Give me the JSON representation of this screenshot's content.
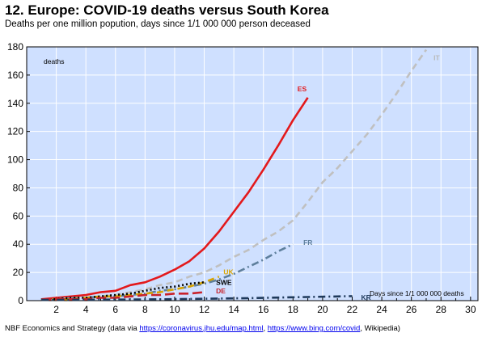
{
  "title": "12. Europe: COVID-19 deaths versus South Korea",
  "subtitle": "Deaths per one million popution, days since 1/1 000 000 person deceased",
  "footer": {
    "prefix": "NBF Economics and Strategy (data via ",
    "link1": "https://coronavirus.jhu.edu/map.html",
    "sep": ", ",
    "link2": "https://www.bing.com/covid",
    "suffix": ", Wikipedia)"
  },
  "chart_data": {
    "type": "line",
    "ylabel_inner": "deaths",
    "xlabel_inner": "Days since 1/1 000 000 deaths",
    "xlim": [
      0,
      30.5
    ],
    "ylim": [
      0,
      180
    ],
    "xticks": [
      2,
      4,
      6,
      8,
      10,
      12,
      14,
      16,
      18,
      20,
      22,
      24,
      26,
      28,
      30
    ],
    "yticks": [
      0,
      20,
      40,
      60,
      80,
      100,
      120,
      140,
      160,
      180
    ],
    "background": "#cfe0ff",
    "series": [
      {
        "name": "ES",
        "color": "#e3191c",
        "dash": "solid",
        "x": [
          1,
          2,
          3,
          4,
          5,
          6,
          7,
          8,
          9,
          10,
          11,
          12,
          13,
          14,
          15,
          16,
          17,
          18,
          19
        ],
        "y": [
          1,
          2,
          3,
          4,
          6,
          7,
          11,
          13,
          17,
          22,
          28,
          37,
          49,
          63,
          77,
          93,
          110,
          128,
          144
        ]
      },
      {
        "name": "IT",
        "color": "#c0c0c0",
        "dash": "dash",
        "x": [
          1,
          2,
          3,
          4,
          5,
          6,
          7,
          8,
          9,
          10,
          11,
          12,
          13,
          14,
          15,
          16,
          17,
          18,
          19,
          20,
          21,
          22,
          23,
          24,
          25,
          26,
          27
        ],
        "y": [
          1,
          1,
          2,
          2,
          3,
          4,
          6,
          8,
          11,
          13,
          17,
          20,
          25,
          31,
          36,
          43,
          49,
          57,
          70,
          84,
          94,
          106,
          118,
          132,
          147,
          163,
          178
        ]
      },
      {
        "name": "FR",
        "color": "#5e7f9c",
        "dash": "dashdot",
        "x": [
          1,
          2,
          3,
          4,
          5,
          6,
          7,
          8,
          9,
          10,
          11,
          12,
          13,
          14,
          15,
          16,
          17,
          18
        ],
        "y": [
          1,
          1,
          2,
          2,
          3,
          3,
          4,
          5,
          7,
          8,
          10,
          12,
          15,
          19,
          24,
          29,
          35,
          40
        ]
      },
      {
        "name": "UK",
        "color": "#d9a400",
        "dash": "dash",
        "x": [
          1,
          2,
          3,
          4,
          5,
          6,
          7,
          8,
          9,
          10,
          11,
          12,
          13
        ],
        "y": [
          1,
          1,
          1,
          2,
          3,
          3,
          4,
          5,
          6,
          8,
          10,
          13,
          17
        ]
      },
      {
        "name": "SWE",
        "color": "#000000",
        "dash": "dot",
        "x": [
          1,
          2,
          3,
          4,
          5,
          6,
          7,
          8,
          9,
          10,
          11,
          12
        ],
        "y": [
          1,
          1,
          2,
          2,
          3,
          4,
          5,
          7,
          9,
          10,
          12,
          13
        ]
      },
      {
        "name": "DE",
        "color": "#c8222a",
        "dash": "longdash",
        "x": [
          1,
          2,
          3,
          4,
          5,
          6,
          7,
          8,
          9,
          10,
          11,
          12
        ],
        "y": [
          1,
          1,
          1,
          1,
          2,
          2,
          3,
          4,
          4,
          5,
          5,
          6
        ]
      },
      {
        "name": "KR",
        "color": "#1f3a5c",
        "dash": "dashdot",
        "x": [
          1,
          3,
          5,
          7,
          9,
          11,
          13,
          15,
          17,
          19,
          21,
          22
        ],
        "y": [
          0.5,
          0.6,
          0.7,
          0.8,
          1,
          1.2,
          1.5,
          1.8,
          2.2,
          2.6,
          3,
          3.2
        ]
      }
    ],
    "labels": [
      {
        "text": "ES",
        "x": 18.3,
        "y": 148,
        "color": "#e3191c"
      },
      {
        "text": "IT",
        "x": 27.5,
        "y": 170,
        "color": "#b8b8b8"
      },
      {
        "text": "FR",
        "x": 18.7,
        "y": 39,
        "color": "#5e7f9c"
      },
      {
        "text": "UK",
        "x": 13.3,
        "y": 18,
        "color": "#d9a400"
      },
      {
        "text": "SWE",
        "x": 12.8,
        "y": 10.5,
        "color": "#000000"
      },
      {
        "text": "DE",
        "x": 12.8,
        "y": 4.5,
        "color": "#c8222a"
      },
      {
        "text": "KR",
        "x": 22.6,
        "y": 0,
        "color": "#1f3a5c"
      }
    ]
  }
}
